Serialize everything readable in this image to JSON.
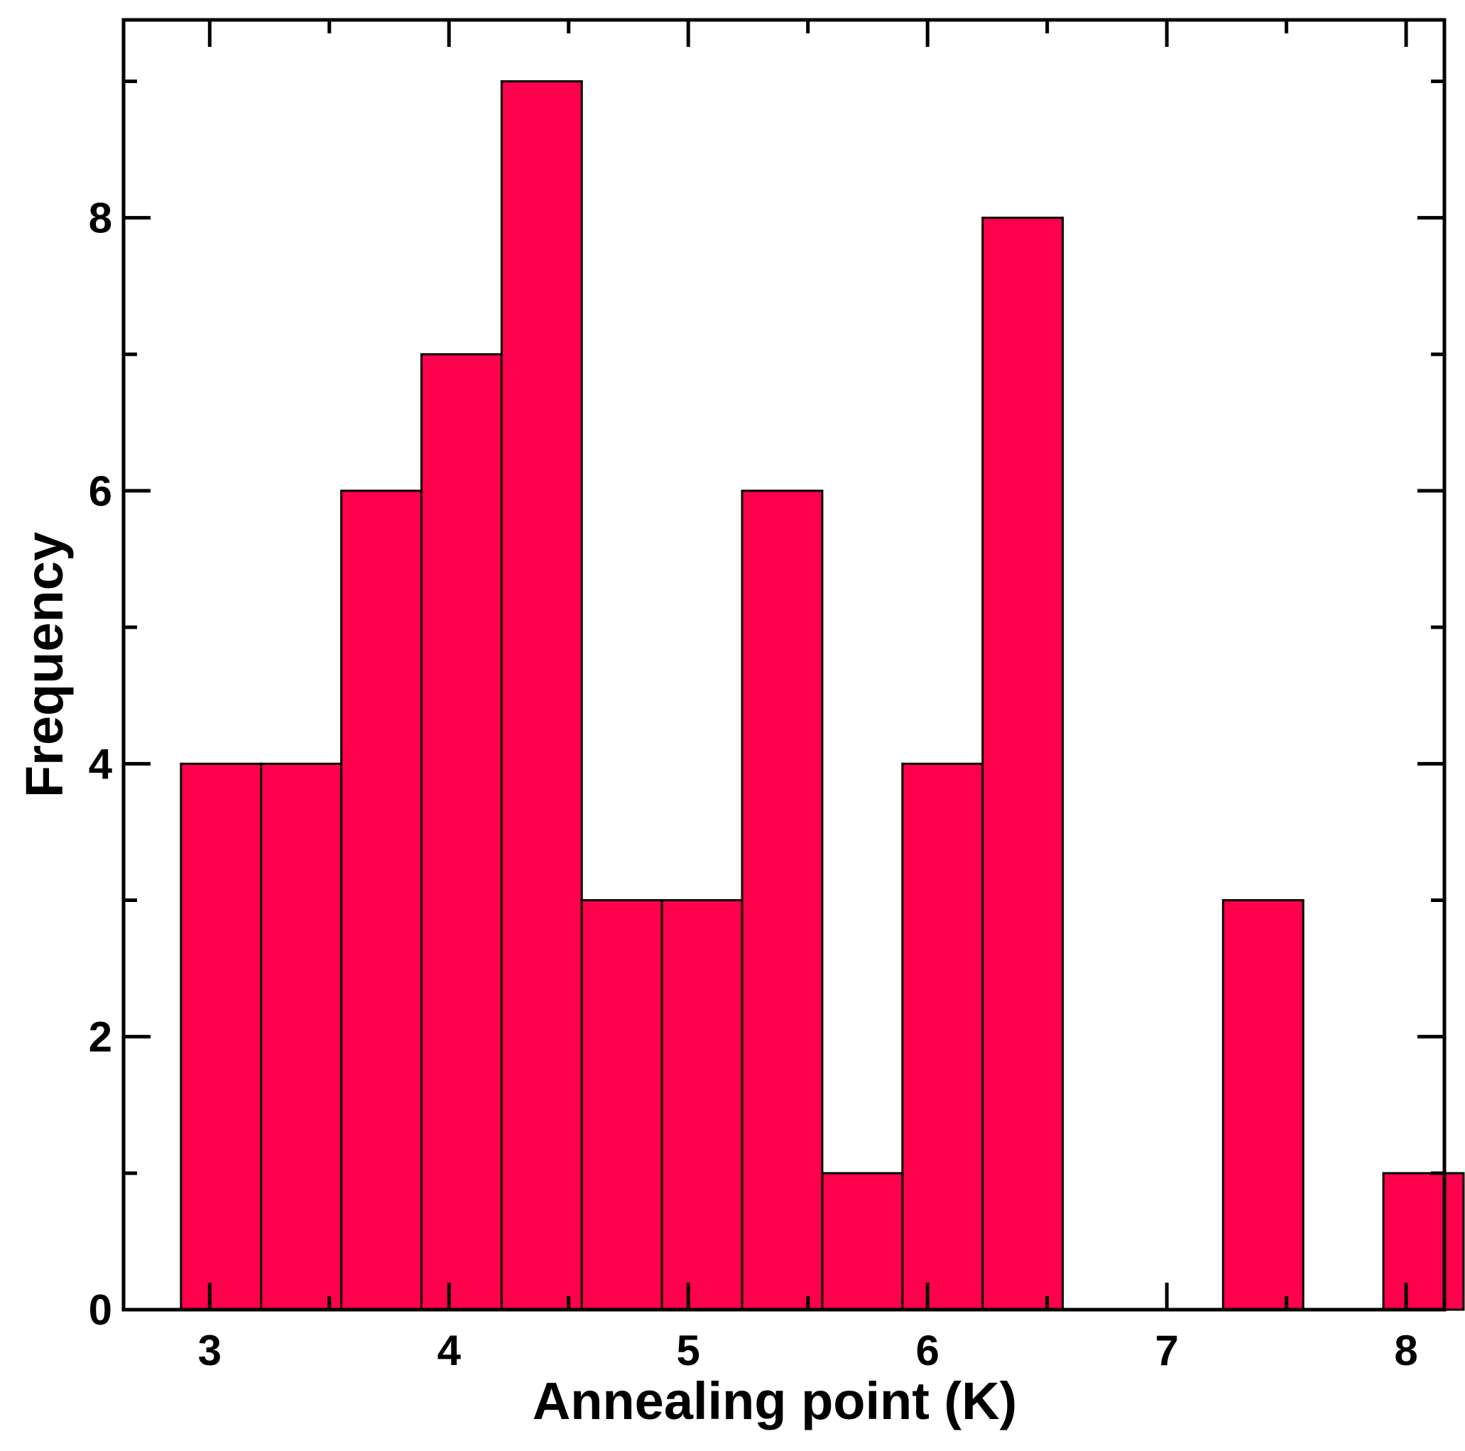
{
  "chart_data": {
    "type": "bar",
    "subtype": "histogram",
    "title": "",
    "xlabel": "Annealing point (K)",
    "ylabel": "Frequency",
    "xlim": [
      2.64,
      8.16
    ],
    "ylim": [
      0,
      9.45
    ],
    "x_ticks": [
      3,
      4,
      5,
      6,
      7,
      8
    ],
    "y_ticks": [
      0,
      2,
      4,
      6,
      8
    ],
    "x_minor_ticks": [
      3.5,
      4.5,
      5.5,
      6.5,
      7.5
    ],
    "y_minor_ticks": [
      1,
      3,
      5,
      7,
      9
    ],
    "bin_start": 2.88,
    "bin_width": 0.335,
    "values": [
      4,
      4,
      6,
      7,
      9,
      3,
      3,
      6,
      1,
      4,
      8,
      0,
      0,
      3,
      0,
      1
    ],
    "bar_color": "#ff004c",
    "edge_color": "#000000",
    "grid": false,
    "legend": "none"
  }
}
